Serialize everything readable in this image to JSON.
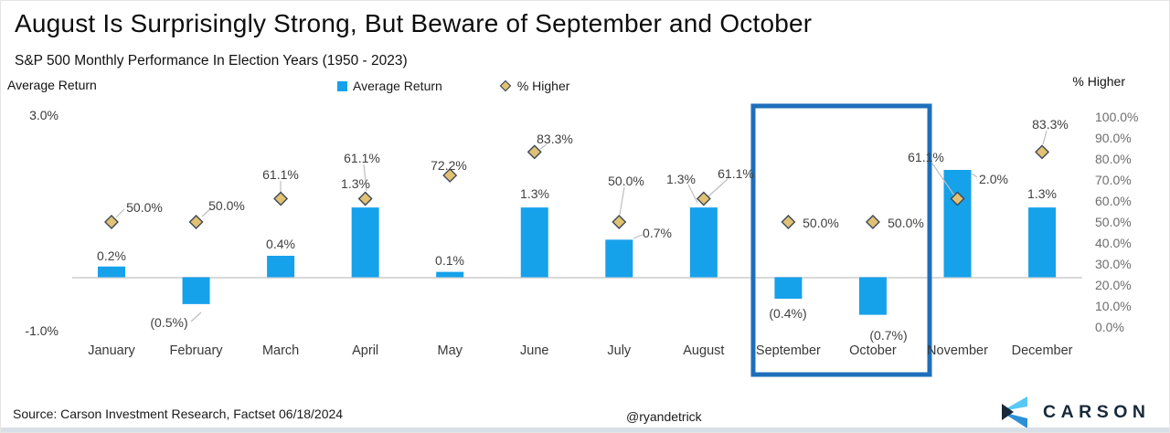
{
  "title": "August Is Surprisingly Strong, But Beware of September and October",
  "subtitle": "S&P 500 Monthly Performance In Election Years (1950 - 2023)",
  "left_axis_title": "Average Return",
  "right_axis_title": "% Higher",
  "legend": {
    "bar_label": "Average Return",
    "diamond_label": "% Higher"
  },
  "footer": {
    "source": "Source: Carson Investment Research, Factset 06/18/2024",
    "handle": "@ryandetrick",
    "brand": "CARSON"
  },
  "colors": {
    "bar": "#16a1eb",
    "diamond_fill": "#e2c173",
    "diamond_stroke": "#3c4a58",
    "highlight_box": "#1e6fbb",
    "baseline": "#d9d9d9",
    "leader": "#bebebe",
    "brand_navy": "#17293a",
    "brand_light_blue": "#58c8f4",
    "brand_mid_blue": "#2e8fd5"
  },
  "chart_data": {
    "type": "bar",
    "subtype": "dual-axis bar + diamond markers",
    "title": "August Is Surprisingly Strong, But Beware of September and October",
    "subtitle": "S&P 500 Monthly Performance In Election Years (1950 - 2023)",
    "categories": [
      "January",
      "February",
      "March",
      "April",
      "May",
      "June",
      "July",
      "August",
      "September",
      "October",
      "November",
      "December"
    ],
    "series": [
      {
        "name": "Average Return",
        "axis": "left",
        "unit": "%",
        "marker": "bar",
        "values": [
          0.2,
          -0.5,
          0.4,
          1.3,
          0.1,
          1.3,
          0.7,
          1.3,
          -0.4,
          -0.7,
          2.0,
          1.3
        ],
        "labels": [
          "0.2%",
          "(0.5%)",
          "0.4%",
          "1.3%",
          "0.1%",
          "1.3%",
          "0.7%",
          "1.3%",
          "(0.4%)",
          "(0.7%)",
          "2.0%",
          "1.3%"
        ]
      },
      {
        "name": "% Higher",
        "axis": "right",
        "unit": "%",
        "marker": "diamond",
        "values": [
          50.0,
          50.0,
          61.1,
          61.1,
          72.2,
          83.3,
          50.0,
          61.1,
          50.0,
          50.0,
          61.1,
          83.3
        ],
        "labels": [
          "50.0%",
          "50.0%",
          "61.1%",
          "61.1%",
          "72.2%",
          "83.3%",
          "50.0%",
          "61.1%",
          "50.0%",
          "50.0%",
          "61.1%",
          "83.3%"
        ]
      }
    ],
    "left_axis": {
      "title": "Average Return",
      "ticks": [
        "3.0%",
        "-1.0%"
      ],
      "min": -1.0,
      "max": 3.0
    },
    "right_axis": {
      "title": "% Higher",
      "ticks": [
        "100.0%",
        "90.0%",
        "80.0%",
        "70.0%",
        "60.0%",
        "50.0%",
        "40.0%",
        "30.0%",
        "20.0%",
        "10.0%",
        "0.0%"
      ],
      "min": 0,
      "max": 100
    },
    "legend_position": "top-center",
    "grid": "zero-baseline-only",
    "highlight": {
      "months": [
        "September",
        "October"
      ]
    }
  }
}
